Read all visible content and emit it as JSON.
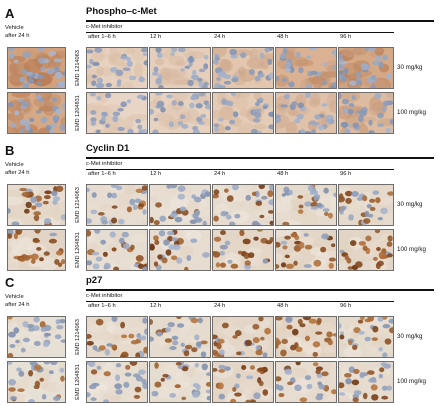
{
  "panels": [
    {
      "label": "A",
      "title": "Phospho–c-Met",
      "vehicle": [
        "Vehicle",
        "after 24 h"
      ],
      "inhibitor": "c-Met inhibitor",
      "timepoints": [
        "after 1–6 h",
        "12 h",
        "24 h",
        "48 h",
        "96 h"
      ],
      "rows": [
        {
          "drug": "EMD 1214063",
          "dose": "30 mg/kg"
        },
        {
          "drug": "EMD 1204831",
          "dose": "100 mg/kg"
        }
      ],
      "stain": [
        [
          0.95,
          0.2,
          0.25,
          0.4,
          0.7,
          0.85
        ],
        [
          0.85,
          0.15,
          0.2,
          0.3,
          0.45,
          0.55
        ]
      ],
      "mode": "membrane"
    },
    {
      "label": "B",
      "title": "Cyclin D1",
      "vehicle": [
        "Vehicle",
        "after 24 h"
      ],
      "inhibitor": "c-Met inhibitor",
      "timepoints": [
        "after 1–6 h",
        "12 h",
        "24 h",
        "48 h",
        "96 h"
      ],
      "rows": [
        {
          "drug": "EMD 1214063",
          "dose": "30 mg/kg"
        },
        {
          "drug": "EMD 1204831",
          "dose": "100 mg/kg"
        }
      ],
      "stain": [
        [
          0.7,
          0.4,
          0.3,
          0.45,
          0.5,
          0.6
        ],
        [
          0.85,
          0.35,
          0.4,
          0.7,
          0.85,
          0.85
        ]
      ],
      "mode": "nuclear"
    },
    {
      "label": "C",
      "title": "p27",
      "vehicle": [
        "Vehicle",
        "after 24 h"
      ],
      "inhibitor": "c-Met inhibitor",
      "timepoints": [
        "after 1–6 h",
        "12 h",
        "24 h",
        "48 h",
        "96 h"
      ],
      "rows": [
        {
          "drug": "EMD 1214063",
          "dose": "30 mg/kg"
        },
        {
          "drug": "EMD 1204831",
          "dose": "100 mg/kg"
        }
      ],
      "stain": [
        [
          0.2,
          0.55,
          0.45,
          0.75,
          0.95,
          0.5
        ],
        [
          0.2,
          0.3,
          0.35,
          0.75,
          0.4,
          0.45
        ]
      ],
      "mode": "nuclear"
    }
  ]
}
